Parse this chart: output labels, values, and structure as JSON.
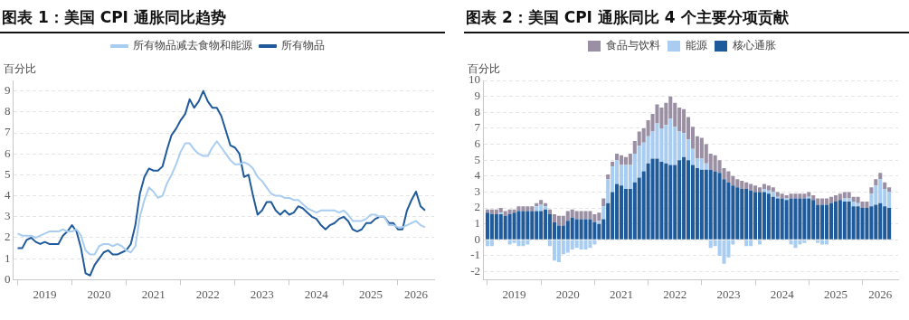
{
  "chart_data": [
    {
      "type": "line",
      "title": "图表 1：美国 CPI 通胀同比趋势",
      "ylabel": "百分比",
      "legend": "top",
      "grid": "y",
      "marker": "none",
      "line_style": "solid",
      "x": [
        "2019-01",
        "2019-02",
        "2019-03",
        "2019-04",
        "2019-05",
        "2019-06",
        "2019-07",
        "2019-08",
        "2019-09",
        "2019-10",
        "2019-11",
        "2019-12",
        "2020-01",
        "2020-02",
        "2020-03",
        "2020-04",
        "2020-05",
        "2020-06",
        "2020-07",
        "2020-08",
        "2020-09",
        "2020-10",
        "2020-11",
        "2020-12",
        "2021-01",
        "2021-02",
        "2021-03",
        "2021-04",
        "2021-05",
        "2021-06",
        "2021-07",
        "2021-08",
        "2021-09",
        "2021-10",
        "2021-11",
        "2021-12",
        "2022-01",
        "2022-02",
        "2022-03",
        "2022-04",
        "2022-05",
        "2022-06",
        "2022-07",
        "2022-08",
        "2022-09",
        "2022-10",
        "2022-11",
        "2022-12",
        "2023-01",
        "2023-02",
        "2023-03",
        "2023-04",
        "2023-05",
        "2023-06",
        "2023-07",
        "2023-08",
        "2023-09",
        "2023-10",
        "2023-11",
        "2023-12",
        "2024-01",
        "2024-02",
        "2024-03",
        "2024-04",
        "2024-05",
        "2024-06",
        "2024-07",
        "2024-08",
        "2024-09",
        "2024-10",
        "2024-11",
        "2024-12",
        "2025-01",
        "2025-02",
        "2025-03",
        "2025-04",
        "2025-05",
        "2025-06",
        "2025-07",
        "2025-08",
        "2025-09",
        "2025-10",
        "2025-11",
        "2025-12",
        "2026-01",
        "2026-02",
        "2026-03",
        "2026-04",
        "2026-05",
        "2026-06",
        "2026-07"
      ],
      "xlim": [
        "2018-12",
        "2026-09"
      ],
      "xticks": [
        {
          "value": "2019-01",
          "label": null
        },
        {
          "value": "2019-07",
          "label": "2019"
        },
        {
          "value": "2020-01",
          "label": null
        },
        {
          "value": "2020-07",
          "label": "2020"
        },
        {
          "value": "2021-01",
          "label": null
        },
        {
          "value": "2021-07",
          "label": "2021"
        },
        {
          "value": "2022-01",
          "label": null
        },
        {
          "value": "2022-07",
          "label": "2022"
        },
        {
          "value": "2023-01",
          "label": null
        },
        {
          "value": "2023-07",
          "label": "2023"
        },
        {
          "value": "2024-01",
          "label": null
        },
        {
          "value": "2024-07",
          "label": "2024"
        },
        {
          "value": "2025-01",
          "label": null
        },
        {
          "value": "2025-07",
          "label": "2025"
        },
        {
          "value": "2026-01",
          "label": null
        },
        {
          "value": "2026-05",
          "label": "2026"
        }
      ],
      "ylim": [
        0,
        9.5
      ],
      "yticks": [
        0,
        1,
        2,
        3,
        4,
        5,
        6,
        7,
        8,
        9
      ],
      "series": [
        {
          "name": "所有物品减去食物和能源",
          "color": "#a9cdf0",
          "values": [
            2.2,
            2.1,
            2.1,
            2.1,
            2.0,
            2.1,
            2.2,
            2.3,
            2.3,
            2.3,
            2.4,
            2.3,
            2.3,
            2.4,
            2.1,
            1.4,
            1.2,
            1.2,
            1.6,
            1.7,
            1.7,
            1.6,
            1.7,
            1.6,
            1.4,
            1.3,
            1.6,
            3.0,
            3.8,
            4.4,
            4.2,
            3.9,
            4.0,
            4.6,
            5.0,
            5.5,
            6.1,
            6.5,
            6.5,
            6.2,
            6.0,
            5.9,
            5.9,
            6.3,
            6.6,
            6.3,
            6.0,
            5.7,
            5.5,
            5.5,
            5.6,
            5.5,
            5.3,
            4.9,
            4.7,
            4.4,
            4.1,
            4.0,
            4.0,
            3.9,
            3.9,
            3.8,
            3.8,
            3.6,
            3.4,
            3.3,
            3.2,
            3.3,
            3.3,
            3.3,
            3.3,
            3.2,
            3.3,
            3.1,
            2.8,
            2.8,
            2.8,
            2.9,
            3.1,
            3.1,
            3.0,
            3.0,
            2.6,
            2.6,
            2.5,
            2.5,
            2.6,
            2.7,
            2.8,
            2.6,
            2.5
          ]
        },
        {
          "name": "所有物品",
          "color": "#1f5a9a",
          "values": [
            1.5,
            1.5,
            1.9,
            2.0,
            1.8,
            1.7,
            1.8,
            1.7,
            1.7,
            1.7,
            2.1,
            2.3,
            2.6,
            2.3,
            1.5,
            0.3,
            0.2,
            0.7,
            1.0,
            1.3,
            1.4,
            1.2,
            1.2,
            1.3,
            1.4,
            1.7,
            2.6,
            4.1,
            4.9,
            5.3,
            5.2,
            5.2,
            5.4,
            6.2,
            6.9,
            7.2,
            7.6,
            7.9,
            8.6,
            8.2,
            8.5,
            9.0,
            8.5,
            8.2,
            8.2,
            7.8,
            7.1,
            6.4,
            6.3,
            6.0,
            4.9,
            5.0,
            4.0,
            3.1,
            3.3,
            3.7,
            3.7,
            3.3,
            3.1,
            3.3,
            3.1,
            3.2,
            3.5,
            3.4,
            3.2,
            3.0,
            2.9,
            2.6,
            2.4,
            2.6,
            2.7,
            2.9,
            3.0,
            2.8,
            2.4,
            2.3,
            2.4,
            2.7,
            2.7,
            2.9,
            3.0,
            3.0,
            2.7,
            2.7,
            2.4,
            2.4,
            3.3,
            3.8,
            4.2,
            3.5,
            3.3
          ]
        }
      ]
    },
    {
      "type": "bar",
      "title": "图表 2：美国 CPI 通胀同比 4 个主要分项贡献",
      "ylabel": "百分比",
      "legend": "top",
      "grid": "y",
      "stacked": true,
      "x": [
        "2019-01",
        "2019-02",
        "2019-03",
        "2019-04",
        "2019-05",
        "2019-06",
        "2019-07",
        "2019-08",
        "2019-09",
        "2019-10",
        "2019-11",
        "2019-12",
        "2020-01",
        "2020-02",
        "2020-03",
        "2020-04",
        "2020-05",
        "2020-06",
        "2020-07",
        "2020-08",
        "2020-09",
        "2020-10",
        "2020-11",
        "2020-12",
        "2021-01",
        "2021-02",
        "2021-03",
        "2021-04",
        "2021-05",
        "2021-06",
        "2021-07",
        "2021-08",
        "2021-09",
        "2021-10",
        "2021-11",
        "2021-12",
        "2022-01",
        "2022-02",
        "2022-03",
        "2022-04",
        "2022-05",
        "2022-06",
        "2022-07",
        "2022-08",
        "2022-09",
        "2022-10",
        "2022-11",
        "2022-12",
        "2023-01",
        "2023-02",
        "2023-03",
        "2023-04",
        "2023-05",
        "2023-06",
        "2023-07",
        "2023-08",
        "2023-09",
        "2023-10",
        "2023-11",
        "2023-12",
        "2024-01",
        "2024-02",
        "2024-03",
        "2024-04",
        "2024-05",
        "2024-06",
        "2024-07",
        "2024-08",
        "2024-09",
        "2024-10",
        "2024-11",
        "2024-12",
        "2025-01",
        "2025-02",
        "2025-03",
        "2025-04",
        "2025-05",
        "2025-06",
        "2025-07",
        "2025-08",
        "2025-09",
        "2025-10",
        "2025-11",
        "2025-12",
        "2026-01",
        "2026-02",
        "2026-03",
        "2026-04",
        "2026-05",
        "2026-06",
        "2026-07"
      ],
      "xlim": [
        "2018-12",
        "2026-09"
      ],
      "xticks": [
        {
          "value": "2019-01",
          "label": null
        },
        {
          "value": "2019-07",
          "label": "2019"
        },
        {
          "value": "2020-01",
          "label": null
        },
        {
          "value": "2020-07",
          "label": "2020"
        },
        {
          "value": "2021-01",
          "label": null
        },
        {
          "value": "2021-07",
          "label": "2021"
        },
        {
          "value": "2022-01",
          "label": null
        },
        {
          "value": "2022-07",
          "label": "2022"
        },
        {
          "value": "2023-01",
          "label": null
        },
        {
          "value": "2023-07",
          "label": "2023"
        },
        {
          "value": "2024-01",
          "label": null
        },
        {
          "value": "2024-07",
          "label": "2024"
        },
        {
          "value": "2025-01",
          "label": null
        },
        {
          "value": "2025-07",
          "label": "2025"
        },
        {
          "value": "2026-01",
          "label": null
        },
        {
          "value": "2026-05",
          "label": "2026"
        }
      ],
      "ylim": [
        -2.5,
        10
      ],
      "yticks": [
        -2,
        -1,
        0,
        1,
        2,
        3,
        4,
        5,
        6,
        7,
        8,
        9,
        10
      ],
      "series": [
        {
          "name": "核心通胀",
          "color": "#1f5a9a",
          "values": [
            1.7,
            1.6,
            1.6,
            1.6,
            1.5,
            1.6,
            1.7,
            1.8,
            1.8,
            1.8,
            1.8,
            1.8,
            1.8,
            1.9,
            1.6,
            1.1,
            0.9,
            0.9,
            1.2,
            1.4,
            1.3,
            1.3,
            1.3,
            1.3,
            1.1,
            1.0,
            1.3,
            2.3,
            3.0,
            3.5,
            3.4,
            3.2,
            3.2,
            3.6,
            3.9,
            4.3,
            4.8,
            5.1,
            5.1,
            4.9,
            4.8,
            4.7,
            4.7,
            5.0,
            5.2,
            5.0,
            4.7,
            4.5,
            4.4,
            4.4,
            4.4,
            4.3,
            4.2,
            3.8,
            3.6,
            3.4,
            3.3,
            3.2,
            3.2,
            3.1,
            3.0,
            3.0,
            3.0,
            2.9,
            2.7,
            2.6,
            2.6,
            2.5,
            2.6,
            2.6,
            2.6,
            2.6,
            2.6,
            2.5,
            2.2,
            2.2,
            2.2,
            2.3,
            2.4,
            2.5,
            2.4,
            2.4,
            2.1,
            2.1,
            2.0,
            2.0,
            2.1,
            2.2,
            2.3,
            2.1,
            2.0
          ]
        },
        {
          "name": "能源",
          "color": "#a9cdf0",
          "values": [
            -0.4,
            -0.4,
            0.0,
            0.1,
            0.0,
            -0.3,
            -0.2,
            -0.4,
            -0.4,
            -0.3,
            0.0,
            0.3,
            0.4,
            0.2,
            -0.4,
            -1.3,
            -1.4,
            -0.9,
            -0.8,
            -0.6,
            -0.5,
            -0.6,
            -0.6,
            -0.5,
            -0.3,
            0.2,
            0.8,
            1.5,
            1.6,
            1.5,
            1.3,
            1.5,
            1.5,
            1.8,
            2.0,
            1.8,
            1.7,
            1.7,
            2.2,
            2.1,
            2.4,
            2.9,
            2.4,
            1.8,
            1.5,
            1.3,
            1.0,
            0.6,
            0.7,
            0.4,
            -0.5,
            -0.4,
            -1.0,
            -1.5,
            -1.1,
            -0.3,
            0.0,
            0.0,
            -0.4,
            -0.4,
            null,
            -0.3,
            0.2,
            0.2,
            0.3,
            0.1,
            0.0,
            0.1,
            -0.3,
            -0.5,
            -0.3,
            -0.2,
            0.1,
            0.0,
            -0.2,
            -0.3,
            -0.3,
            null,
            null,
            0.0,
            0.2,
            0.2,
            0.3,
            0.2,
            0.0,
            0.0,
            0.8,
            1.2,
            1.5,
            1.1,
            1.0
          ]
        },
        {
          "name": "食品与饮料",
          "color": "#9b8fa3",
          "values": [
            0.2,
            0.3,
            0.3,
            0.3,
            0.3,
            0.3,
            0.2,
            0.3,
            0.3,
            0.3,
            0.3,
            0.2,
            0.3,
            0.2,
            0.3,
            0.5,
            0.6,
            0.6,
            0.6,
            0.5,
            0.5,
            0.5,
            0.5,
            0.5,
            0.5,
            0.5,
            0.5,
            0.3,
            0.3,
            0.4,
            0.6,
            0.5,
            0.7,
            0.8,
            0.9,
            0.9,
            1.0,
            1.1,
            1.2,
            1.3,
            1.4,
            1.4,
            1.5,
            1.5,
            1.5,
            1.4,
            1.4,
            1.4,
            1.3,
            1.2,
            1.0,
            1.0,
            0.8,
            0.7,
            0.7,
            0.6,
            0.5,
            0.5,
            0.4,
            0.4,
            0.4,
            0.3,
            0.3,
            0.3,
            0.3,
            0.3,
            0.3,
            0.2,
            0.3,
            0.3,
            0.3,
            0.3,
            0.3,
            0.3,
            0.4,
            0.4,
            0.4,
            0.4,
            0.4,
            0.4,
            0.4,
            0.4,
            0.3,
            0.4,
            0.4,
            0.4,
            0.4,
            0.4,
            0.4,
            0.4,
            0.3
          ]
        }
      ]
    }
  ]
}
